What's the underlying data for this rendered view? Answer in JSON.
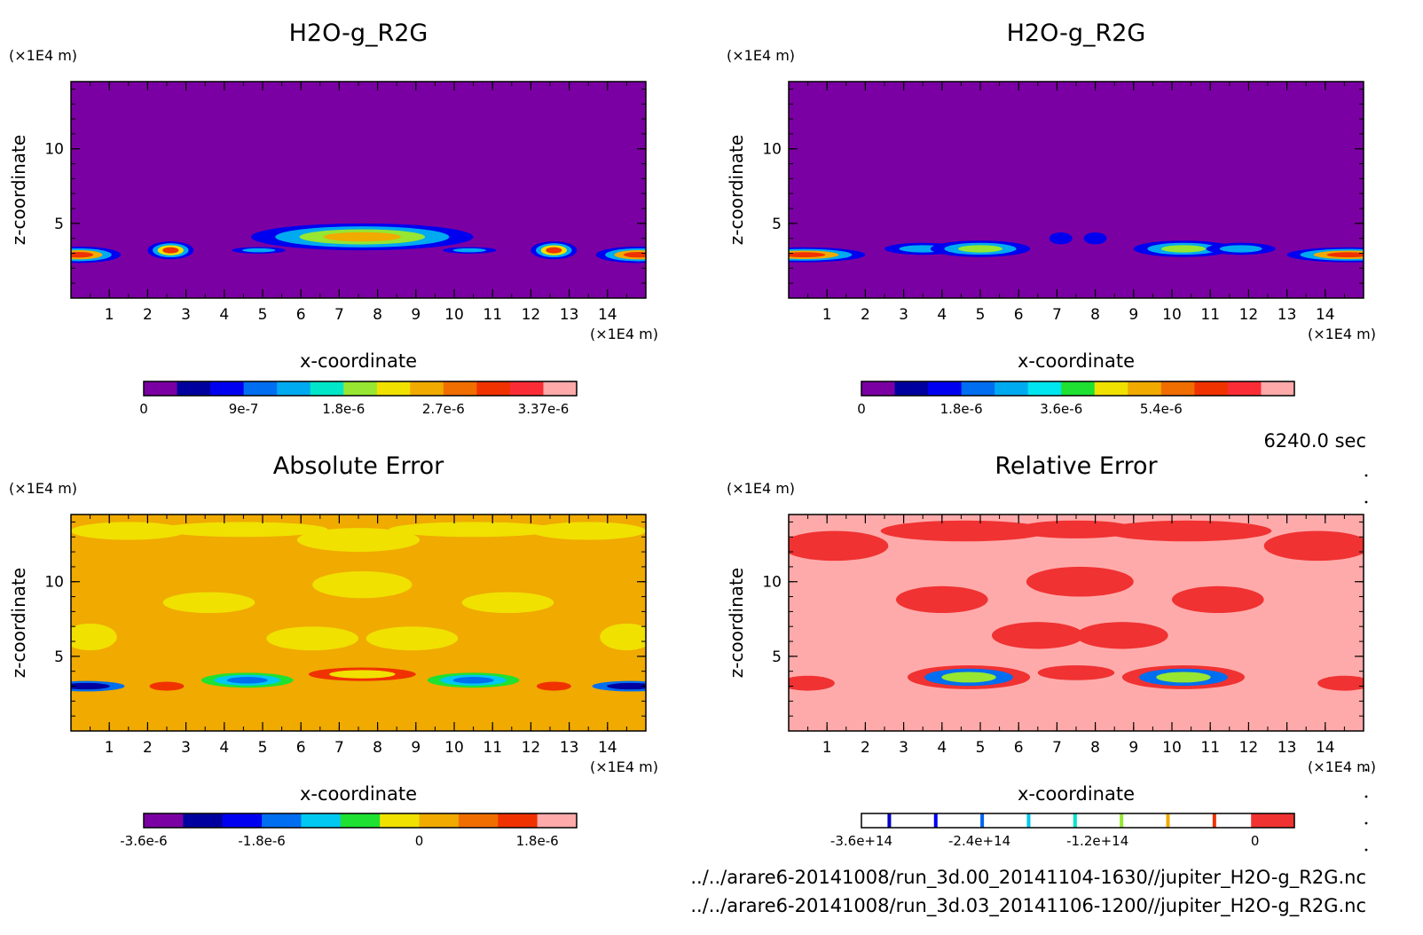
{
  "time_label": "6240.0 sec",
  "files": [
    "../../arare6-20141008/run_3d.00_20141104-1630//jupiter_H2O-g_R2G.nc",
    "../../arare6-20141008/run_3d.03_20141106-1200//jupiter_H2O-g_R2G.nc"
  ],
  "chart_data": [
    {
      "type": "heatmap",
      "title": "H2O-g_R2G",
      "xlabel": "x-coordinate",
      "ylabel": "z-coordinate",
      "x_unit": "(×1E4 m)",
      "y_unit": "(×1E4 m)",
      "xlim": [
        0,
        15
      ],
      "ylim": [
        0,
        14.5
      ],
      "x_ticks": [
        1,
        2,
        3,
        4,
        5,
        6,
        7,
        8,
        9,
        10,
        11,
        12,
        13,
        14
      ],
      "y_ticks": [
        5,
        10
      ],
      "background_color": "#7b00a3",
      "colorbar": {
        "colors": [
          "#7b00a3",
          "#00009e",
          "#0000f0",
          "#006ef0",
          "#00aaf0",
          "#00e6c8",
          "#96e632",
          "#f0e100",
          "#f0aa00",
          "#f06e00",
          "#f03200",
          "#fa2d37",
          "#ffaaaa"
        ],
        "tick_labels": [
          "0",
          "9e-7",
          "1.8e-6",
          "2.7e-6",
          "3.37e-6"
        ],
        "tick_index": [
          0,
          3,
          6,
          9,
          12
        ]
      },
      "features": [
        {
          "x": 0.2,
          "z": 2.9,
          "rx": 1.1,
          "rz": 0.55,
          "levels": [
            "#0000f0",
            "#00aaf0",
            "#f0aa00",
            "#f03200"
          ]
        },
        {
          "x": 2.6,
          "z": 3.2,
          "rx": 0.6,
          "rz": 0.6,
          "levels": [
            "#0000f0",
            "#00aaf0",
            "#f0e100",
            "#f03200"
          ]
        },
        {
          "x": 4.9,
          "z": 3.2,
          "rx": 0.7,
          "rz": 0.22,
          "levels": [
            "#0000f0",
            "#00aaf0"
          ]
        },
        {
          "x": 7.6,
          "z": 4.1,
          "rx": 2.9,
          "rz": 0.9,
          "levels": [
            "#0000f0",
            "#00aaf0",
            "#96e632",
            "#f0aa00"
          ]
        },
        {
          "x": 10.4,
          "z": 3.2,
          "rx": 0.7,
          "rz": 0.22,
          "levels": [
            "#0000f0",
            "#00aaf0"
          ]
        },
        {
          "x": 12.6,
          "z": 3.2,
          "rx": 0.6,
          "rz": 0.6,
          "levels": [
            "#0000f0",
            "#00aaf0",
            "#f0e100",
            "#f03200"
          ]
        },
        {
          "x": 14.8,
          "z": 2.9,
          "rx": 1.1,
          "rz": 0.55,
          "levels": [
            "#0000f0",
            "#00aaf0",
            "#f0aa00",
            "#f03200"
          ]
        }
      ]
    },
    {
      "type": "heatmap",
      "title": "H2O-g_R2G",
      "xlabel": "x-coordinate",
      "ylabel": "z-coordinate",
      "x_unit": "(×1E4 m)",
      "y_unit": "(×1E4 m)",
      "xlim": [
        0,
        15
      ],
      "ylim": [
        0,
        14.5
      ],
      "x_ticks": [
        1,
        2,
        3,
        4,
        5,
        6,
        7,
        8,
        9,
        10,
        11,
        12,
        13,
        14
      ],
      "y_ticks": [
        5,
        10
      ],
      "background_color": "#7b00a3",
      "colorbar": {
        "colors": [
          "#7b00a3",
          "#00009e",
          "#0000f0",
          "#006ef0",
          "#00aaf0",
          "#00e6f0",
          "#1ee132",
          "#f0e100",
          "#f0aa00",
          "#f06e00",
          "#f03200",
          "#fa2d37",
          "#ffaaaa"
        ],
        "tick_labels": [
          "0",
          "1.8e-6",
          "3.6e-6",
          "5.4e-6"
        ],
        "tick_index": [
          0,
          3,
          6,
          9
        ]
      },
      "features": [
        {
          "x": 0.4,
          "z": 2.9,
          "rx": 1.6,
          "rz": 0.5,
          "levels": [
            "#0000f0",
            "#00aaf0",
            "#f0aa00",
            "#f03200"
          ]
        },
        {
          "x": 3.5,
          "z": 3.3,
          "rx": 1.0,
          "rz": 0.4,
          "levels": [
            "#0000f0",
            "#00aaf0"
          ]
        },
        {
          "x": 5.0,
          "z": 3.3,
          "rx": 1.3,
          "rz": 0.55,
          "levels": [
            "#0000f0",
            "#00aaf0",
            "#96e632"
          ]
        },
        {
          "x": 7.1,
          "z": 4.0,
          "rx": 0.3,
          "rz": 0.4,
          "levels": [
            "#0000f0"
          ]
        },
        {
          "x": 8.0,
          "z": 4.0,
          "rx": 0.3,
          "rz": 0.4,
          "levels": [
            "#0000f0"
          ]
        },
        {
          "x": 10.3,
          "z": 3.3,
          "rx": 1.3,
          "rz": 0.55,
          "levels": [
            "#0000f0",
            "#00aaf0",
            "#96e632"
          ]
        },
        {
          "x": 11.8,
          "z": 3.3,
          "rx": 0.9,
          "rz": 0.4,
          "levels": [
            "#0000f0",
            "#00aaf0"
          ]
        },
        {
          "x": 14.6,
          "z": 2.9,
          "rx": 1.6,
          "rz": 0.5,
          "levels": [
            "#0000f0",
            "#00aaf0",
            "#f0aa00",
            "#f03200"
          ]
        }
      ]
    },
    {
      "type": "heatmap",
      "title": "Absolute Error",
      "xlabel": "x-coordinate",
      "ylabel": "z-coordinate",
      "x_unit": "(×1E4 m)",
      "y_unit": "(×1E4 m)",
      "xlim": [
        0,
        15
      ],
      "ylim": [
        0,
        14.5
      ],
      "x_ticks": [
        1,
        2,
        3,
        4,
        5,
        6,
        7,
        8,
        9,
        10,
        11,
        12,
        13,
        14
      ],
      "y_ticks": [
        5,
        10
      ],
      "background_color": "#f0aa00",
      "colorbar": {
        "colors": [
          "#7b00a3",
          "#00009e",
          "#0000f0",
          "#006ef0",
          "#00c8f0",
          "#1ee132",
          "#f0e100",
          "#f0aa00",
          "#f06e00",
          "#f03200",
          "#ffaaaa"
        ],
        "tick_labels": [
          "-3.6e-6",
          "-1.8e-6",
          "0",
          "1.8e-6"
        ],
        "tick_index": [
          0,
          3,
          7,
          10
        ]
      },
      "features": [
        {
          "x": 1.5,
          "z": 13.4,
          "rx": 1.5,
          "rz": 0.6,
          "levels": [
            "#f0e100"
          ]
        },
        {
          "x": 4.5,
          "z": 13.5,
          "rx": 2.2,
          "rz": 0.5,
          "levels": [
            "#f0e100"
          ]
        },
        {
          "x": 7.5,
          "z": 12.8,
          "rx": 1.6,
          "rz": 0.8,
          "levels": [
            "#f0e100"
          ]
        },
        {
          "x": 10.5,
          "z": 13.5,
          "rx": 2.2,
          "rz": 0.5,
          "levels": [
            "#f0e100"
          ]
        },
        {
          "x": 13.5,
          "z": 13.4,
          "rx": 1.5,
          "rz": 0.6,
          "levels": [
            "#f0e100"
          ]
        },
        {
          "x": 3.6,
          "z": 8.6,
          "rx": 1.2,
          "rz": 0.7,
          "levels": [
            "#f0e100"
          ]
        },
        {
          "x": 6.3,
          "z": 6.2,
          "rx": 1.2,
          "rz": 0.8,
          "levels": [
            "#f0e100"
          ]
        },
        {
          "x": 7.6,
          "z": 9.8,
          "rx": 1.3,
          "rz": 0.9,
          "levels": [
            "#f0e100"
          ]
        },
        {
          "x": 8.9,
          "z": 6.2,
          "rx": 1.2,
          "rz": 0.8,
          "levels": [
            "#f0e100"
          ]
        },
        {
          "x": 11.4,
          "z": 8.6,
          "rx": 1.2,
          "rz": 0.7,
          "levels": [
            "#f0e100"
          ]
        },
        {
          "x": 0.5,
          "z": 6.3,
          "rx": 0.7,
          "rz": 0.9,
          "levels": [
            "#f0e100"
          ]
        },
        {
          "x": 14.5,
          "z": 6.3,
          "rx": 0.7,
          "rz": 0.9,
          "levels": [
            "#f0e100"
          ]
        },
        {
          "x": 0.4,
          "z": 3.0,
          "rx": 1.0,
          "rz": 0.35,
          "levels": [
            "#006ef0",
            "#00009e"
          ]
        },
        {
          "x": 4.6,
          "z": 3.4,
          "rx": 1.2,
          "rz": 0.5,
          "levels": [
            "#1ee132",
            "#00c8f0",
            "#006ef0"
          ]
        },
        {
          "x": 2.5,
          "z": 3.0,
          "rx": 0.45,
          "rz": 0.3,
          "levels": [
            "#f03200"
          ]
        },
        {
          "x": 7.6,
          "z": 3.8,
          "rx": 1.4,
          "rz": 0.45,
          "levels": [
            "#f03200",
            "#f0e100"
          ]
        },
        {
          "x": 10.5,
          "z": 3.4,
          "rx": 1.2,
          "rz": 0.5,
          "levels": [
            "#1ee132",
            "#00c8f0",
            "#006ef0"
          ]
        },
        {
          "x": 12.6,
          "z": 3.0,
          "rx": 0.45,
          "rz": 0.3,
          "levels": [
            "#f03200"
          ]
        },
        {
          "x": 14.6,
          "z": 3.0,
          "rx": 1.0,
          "rz": 0.35,
          "levels": [
            "#006ef0",
            "#00009e"
          ]
        }
      ]
    },
    {
      "type": "heatmap",
      "title": "Relative Error",
      "xlabel": "x-coordinate",
      "ylabel": "z-coordinate",
      "x_unit": "(×1E4 m)",
      "y_unit": "(×1E4 m)",
      "xlim": [
        0,
        15
      ],
      "ylim": [
        0,
        14.5
      ],
      "x_ticks": [
        1,
        2,
        3,
        4,
        5,
        6,
        7,
        8,
        9,
        10,
        11,
        12,
        13,
        14
      ],
      "y_ticks": [
        5,
        10
      ],
      "background_color": "#ffaaaa",
      "colorbar": {
        "style": "lines",
        "line_colors": [
          "#0000c8",
          "#0000f0",
          "#0064f0",
          "#00c8f0",
          "#00e6c8",
          "#96e632",
          "#f0aa00",
          "#f03200"
        ],
        "fill_color": "#f03232",
        "tick_labels": [
          "-3.6e+14",
          "-2.4e+14",
          "-1.2e+14",
          "0"
        ],
        "tick_index": [
          0,
          3,
          6,
          10
        ]
      },
      "features": [
        {
          "x": 1.2,
          "z": 12.4,
          "rx": 1.4,
          "rz": 1.0,
          "levels": [
            "#f03232"
          ]
        },
        {
          "x": 4.6,
          "z": 13.4,
          "rx": 2.2,
          "rz": 0.7,
          "levels": [
            "#f03232"
          ]
        },
        {
          "x": 7.5,
          "z": 13.5,
          "rx": 1.6,
          "rz": 0.6,
          "levels": [
            "#f03232"
          ]
        },
        {
          "x": 10.4,
          "z": 13.4,
          "rx": 2.2,
          "rz": 0.7,
          "levels": [
            "#f03232"
          ]
        },
        {
          "x": 13.8,
          "z": 12.4,
          "rx": 1.4,
          "rz": 1.0,
          "levels": [
            "#f03232"
          ]
        },
        {
          "x": 4.0,
          "z": 8.8,
          "rx": 1.2,
          "rz": 0.9,
          "levels": [
            "#f03232"
          ]
        },
        {
          "x": 6.5,
          "z": 6.4,
          "rx": 1.2,
          "rz": 0.9,
          "levels": [
            "#f03232"
          ]
        },
        {
          "x": 7.6,
          "z": 10.0,
          "rx": 1.4,
          "rz": 1.0,
          "levels": [
            "#f03232"
          ]
        },
        {
          "x": 8.7,
          "z": 6.4,
          "rx": 1.2,
          "rz": 0.9,
          "levels": [
            "#f03232"
          ]
        },
        {
          "x": 11.2,
          "z": 8.8,
          "rx": 1.2,
          "rz": 0.9,
          "levels": [
            "#f03232"
          ]
        },
        {
          "x": 4.7,
          "z": 3.6,
          "rx": 1.6,
          "rz": 0.8,
          "levels": [
            "#f03232",
            "#006ef0",
            "#96e632"
          ]
        },
        {
          "x": 10.3,
          "z": 3.6,
          "rx": 1.6,
          "rz": 0.8,
          "levels": [
            "#f03232",
            "#006ef0",
            "#96e632"
          ]
        },
        {
          "x": 0.5,
          "z": 3.2,
          "rx": 0.7,
          "rz": 0.5,
          "levels": [
            "#f03232"
          ]
        },
        {
          "x": 14.5,
          "z": 3.2,
          "rx": 0.7,
          "rz": 0.5,
          "levels": [
            "#f03232"
          ]
        },
        {
          "x": 7.5,
          "z": 3.9,
          "rx": 1.0,
          "rz": 0.5,
          "levels": [
            "#f03232"
          ]
        }
      ]
    }
  ]
}
